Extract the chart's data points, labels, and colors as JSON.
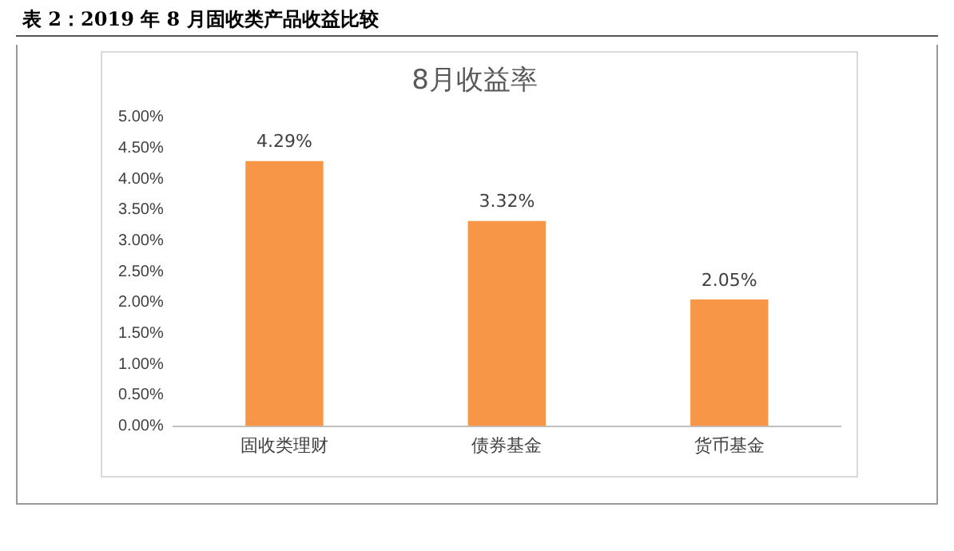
{
  "chart_data": {
    "type": "bar",
    "title": "8月收益率",
    "annotations": [
      "表 2：2019 年 8 月固收类产品收益比较"
    ],
    "categories": [
      "固收类理财",
      "债券基金",
      "货币基金"
    ],
    "values": [
      4.29,
      3.32,
      2.05
    ],
    "color": "#f79646",
    "value_labels": [
      "4.29%",
      "3.32%",
      "2.05%"
    ],
    "ylim": [
      0,
      5
    ],
    "yticks": [
      {
        "value": 0,
        "label": "0.00%"
      },
      {
        "value": 0.5,
        "label": "0.50%"
      },
      {
        "value": 1,
        "label": "1.00%"
      },
      {
        "value": 1.5,
        "label": "1.50%"
      },
      {
        "value": 2,
        "label": "2.00%"
      },
      {
        "value": 2.5,
        "label": "2.50%"
      },
      {
        "value": 3,
        "label": "3.00%"
      },
      {
        "value": 3.5,
        "label": "3.50%"
      },
      {
        "value": 4,
        "label": "4.00%"
      },
      {
        "value": 4.5,
        "label": "4.50%"
      },
      {
        "value": 5,
        "label": "5.00%"
      }
    ],
    "grid": false,
    "legend": false
  }
}
